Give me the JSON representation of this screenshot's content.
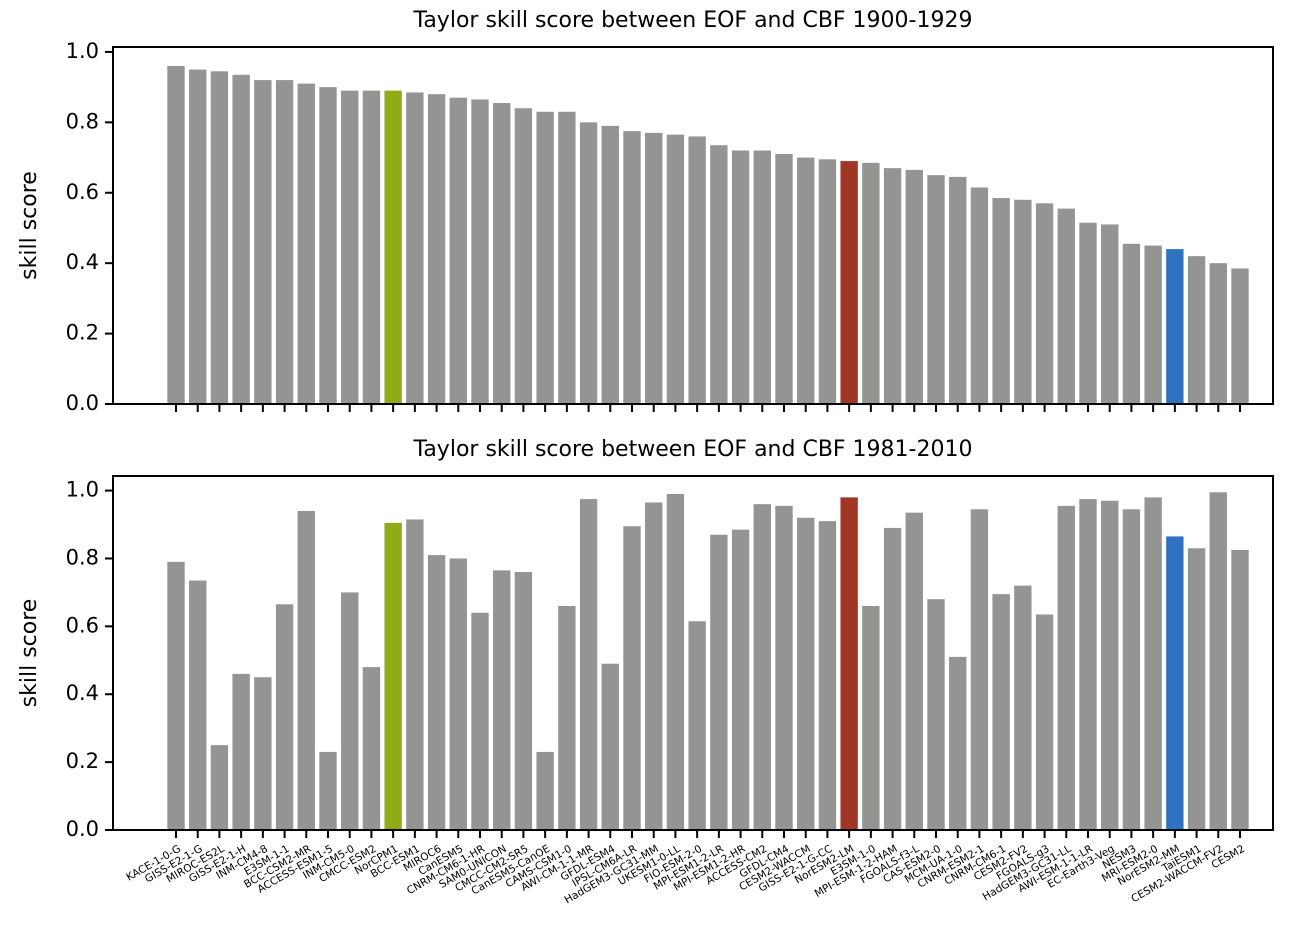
{
  "chart_data": [
    {
      "type": "bar",
      "title": "Taylor skill score between EOF and CBF 1900-1929",
      "ylabel": "skill score",
      "values": [
        0.96,
        0.95,
        0.945,
        0.935,
        0.92,
        0.92,
        0.91,
        0.9,
        0.89,
        0.89,
        0.89,
        0.885,
        0.88,
        0.87,
        0.865,
        0.855,
        0.84,
        0.83,
        0.83,
        0.8,
        0.79,
        0.775,
        0.77,
        0.765,
        0.76,
        0.735,
        0.72,
        0.72,
        0.71,
        0.7,
        0.695,
        0.69,
        0.685,
        0.67,
        0.665,
        0.65,
        0.645,
        0.615,
        0.585,
        0.58,
        0.57,
        0.555,
        0.515,
        0.51,
        0.455,
        0.45,
        0.44,
        0.42,
        0.4,
        0.385
      ],
      "colors": [
        "#949592",
        "#949592",
        "#949592",
        "#949592",
        "#949592",
        "#949592",
        "#949592",
        "#949592",
        "#949592",
        "#949592",
        "#8fac17",
        "#949592",
        "#949592",
        "#949592",
        "#949592",
        "#949592",
        "#949592",
        "#949592",
        "#949592",
        "#949592",
        "#949592",
        "#949592",
        "#949592",
        "#949592",
        "#949592",
        "#949592",
        "#949592",
        "#949592",
        "#949592",
        "#949592",
        "#949592",
        "#a13526",
        "#949592",
        "#949592",
        "#949592",
        "#949592",
        "#949592",
        "#949592",
        "#949592",
        "#949592",
        "#949592",
        "#949592",
        "#949592",
        "#949592",
        "#949592",
        "#949592",
        "#2f72c2",
        "#949592",
        "#949592",
        "#949592"
      ],
      "ylim": [
        0,
        1.014
      ],
      "yticks": [
        {
          "value": 0,
          "label": "0.0"
        },
        0.2,
        0.4,
        0.6,
        0.8,
        {
          "value": 1,
          "label": "1.0"
        }
      ]
    },
    {
      "type": "bar",
      "title": "Taylor skill score between EOF and CBF 1981-2010",
      "ylabel": "skill score",
      "categories": [
        "KACE-1-0-G",
        "GISS-E2-1-G",
        "MIROC-ES2L",
        "GISS-E2-1-H",
        "INM-CM4-8",
        "E3SM-1-1",
        "BCC-CSM2-MR",
        "ACCESS-ESM1-5",
        "INM-CM5-0",
        "CMCC-ESM2",
        "NorCPM1",
        "BCC-ESM1",
        "MIROC6",
        "CanESM5",
        "CNRM-CM6-1-HR",
        "SAM0-UNICON",
        "CMCC-CM2-SR5",
        "CanESM5-CanOE",
        "CAMS-CSM1-0",
        "AWI-CM-1-1-MR",
        "GFDL-ESM4",
        "IPSL-CM6A-LR",
        "HadGEM3-GC31-MM",
        "UKESM1-0-LL",
        "FIO-ESM-2-0",
        "MPI-ESM1-2-LR",
        "MPI-ESM1-2-HR",
        "ACCESS-CM2",
        "GFDL-CM4",
        "CESM2-WACCM",
        "GISS-E2-1-G-CC",
        "NorESM2-LM",
        "E3SM-1-0",
        "MPI-ESM-1-2-HAM",
        "FGOALS-f3-L",
        "CAS-ESM2-0",
        "MCM-UA-1-0",
        "CNRM-ESM2-1",
        "CNRM-CM6-1",
        "CESM2-FV2",
        "FGOALS-g3",
        "HadGEM3-GC31-LL",
        "AWI-ESM-1-1-LR",
        "EC-Earth3-Veg",
        "NESM3",
        "MRI-ESM2-0",
        "NorESM2-MM",
        "TaiESM1",
        "CESM2-WACCM-FV2",
        "CESM2"
      ],
      "values": [
        0.79,
        0.735,
        0.25,
        0.46,
        0.45,
        0.665,
        0.94,
        0.23,
        0.7,
        0.48,
        0.905,
        0.915,
        0.81,
        0.8,
        0.64,
        0.765,
        0.76,
        0.23,
        0.66,
        0.975,
        0.49,
        0.895,
        0.965,
        0.99,
        0.615,
        0.87,
        0.885,
        0.96,
        0.955,
        0.92,
        0.91,
        0.98,
        0.66,
        0.89,
        0.935,
        0.68,
        0.51,
        0.945,
        0.695,
        0.72,
        0.635,
        0.955,
        0.975,
        0.97,
        0.945,
        0.98,
        0.865,
        0.83,
        0.995,
        0.825
      ],
      "colors": [
        "#949592",
        "#949592",
        "#949592",
        "#949592",
        "#949592",
        "#949592",
        "#949592",
        "#949592",
        "#949592",
        "#949592",
        "#8fac17",
        "#949592",
        "#949592",
        "#949592",
        "#949592",
        "#949592",
        "#949592",
        "#949592",
        "#949592",
        "#949592",
        "#949592",
        "#949592",
        "#949592",
        "#949592",
        "#949592",
        "#949592",
        "#949592",
        "#949592",
        "#949592",
        "#949592",
        "#949592",
        "#a13526",
        "#949592",
        "#949592",
        "#949592",
        "#949592",
        "#949592",
        "#949592",
        "#949592",
        "#949592",
        "#949592",
        "#949592",
        "#949592",
        "#949592",
        "#949592",
        "#949592",
        "#2f72c2",
        "#949592",
        "#949592",
        "#949592"
      ],
      "ylim": [
        0,
        1.043
      ],
      "yticks": [
        {
          "value": 0,
          "label": "0.0"
        },
        0.2,
        0.4,
        0.6,
        0.8,
        {
          "value": 1,
          "label": "1.0"
        }
      ]
    }
  ]
}
